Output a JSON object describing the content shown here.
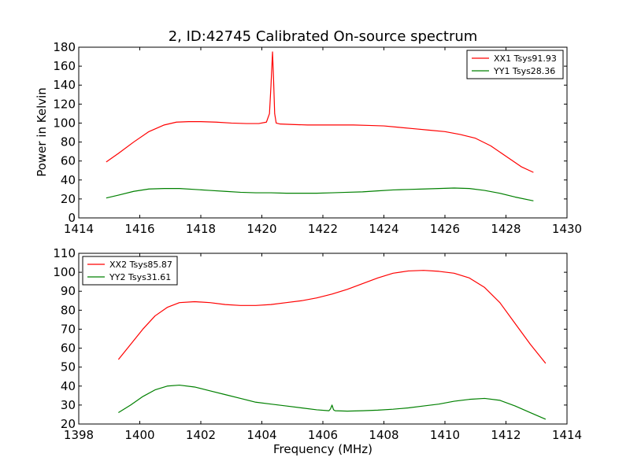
{
  "chart_data": [
    {
      "type": "line",
      "title": "2, ID:42745 Calibrated On-source spectrum",
      "xlabel": "",
      "ylabel": "Power in Kelvin",
      "xlim": [
        1414,
        1430
      ],
      "ylim": [
        0,
        180
      ],
      "xticks": [
        1414,
        1416,
        1418,
        1420,
        1422,
        1424,
        1426,
        1428,
        1430
      ],
      "yticks": [
        0,
        20,
        40,
        60,
        80,
        100,
        120,
        140,
        160,
        180
      ],
      "legend_position": "top-right",
      "series": [
        {
          "name": "XX1 Tsys91.93",
          "color": "#ff0000",
          "x": [
            1414.9,
            1415.3,
            1415.8,
            1416.3,
            1416.8,
            1417.2,
            1417.6,
            1418.0,
            1418.5,
            1419.0,
            1419.5,
            1419.9,
            1420.15,
            1420.25,
            1420.3,
            1420.35,
            1420.38,
            1420.42,
            1420.47,
            1420.6,
            1421.0,
            1421.5,
            1422.0,
            1422.5,
            1423.0,
            1423.5,
            1424.0,
            1424.5,
            1425.0,
            1425.5,
            1426.0,
            1426.5,
            1427.0,
            1427.5,
            1428.0,
            1428.5,
            1428.9
          ],
          "y": [
            59,
            68,
            80,
            91,
            98,
            101,
            101.5,
            101.5,
            101,
            100,
            99.5,
            99.5,
            101,
            110,
            140,
            175,
            150,
            110,
            100,
            99,
            98.5,
            98,
            98,
            98,
            98,
            97.5,
            97,
            95.5,
            94,
            92.5,
            91,
            88,
            84,
            76,
            65,
            54,
            48
          ]
        },
        {
          "name": "YY1 Tsys28.36",
          "color": "#008000",
          "x": [
            1414.9,
            1415.3,
            1415.8,
            1416.3,
            1416.8,
            1417.3,
            1417.8,
            1418.3,
            1418.8,
            1419.3,
            1419.8,
            1420.3,
            1420.8,
            1421.3,
            1421.8,
            1422.3,
            1422.8,
            1423.3,
            1423.8,
            1424.3,
            1424.8,
            1425.3,
            1425.8,
            1426.3,
            1426.8,
            1427.3,
            1427.8,
            1428.3,
            1428.9
          ],
          "y": [
            21,
            24,
            28,
            30.5,
            31,
            31,
            30,
            29,
            28,
            27,
            26.5,
            26.5,
            26,
            26,
            26,
            26.5,
            27,
            27.5,
            28.5,
            29.5,
            30,
            30.5,
            31,
            31.5,
            31,
            29,
            26,
            22,
            18
          ]
        }
      ]
    },
    {
      "type": "line",
      "title": "",
      "xlabel": "Frequency (MHz)",
      "ylabel": "",
      "xlim": [
        1398,
        1414
      ],
      "ylim": [
        20,
        110
      ],
      "xticks": [
        1398,
        1400,
        1402,
        1404,
        1406,
        1408,
        1410,
        1412,
        1414
      ],
      "yticks": [
        20,
        30,
        40,
        50,
        60,
        70,
        80,
        90,
        100,
        110
      ],
      "legend_position": "top-left",
      "series": [
        {
          "name": "XX2 Tsys85.87",
          "color": "#ff0000",
          "x": [
            1399.3,
            1399.7,
            1400.1,
            1400.5,
            1400.9,
            1401.3,
            1401.8,
            1402.3,
            1402.8,
            1403.3,
            1403.8,
            1404.3,
            1404.8,
            1405.3,
            1405.8,
            1406.3,
            1406.8,
            1407.3,
            1407.8,
            1408.3,
            1408.8,
            1409.3,
            1409.8,
            1410.3,
            1410.8,
            1411.3,
            1411.8,
            1412.3,
            1412.8,
            1413.3
          ],
          "y": [
            54,
            62,
            70,
            77,
            81.5,
            84,
            84.5,
            84,
            83,
            82.5,
            82.5,
            83,
            84,
            85,
            86.5,
            88.5,
            91,
            94,
            97,
            99.5,
            100.7,
            101,
            100.5,
            99.5,
            97,
            92,
            84,
            73,
            62,
            52
          ]
        },
        {
          "name": "YY2 Tsys31.61",
          "color": "#008000",
          "x": [
            1399.3,
            1399.7,
            1400.1,
            1400.5,
            1400.9,
            1401.3,
            1401.8,
            1402.3,
            1402.8,
            1403.3,
            1403.8,
            1404.3,
            1404.8,
            1405.3,
            1405.8,
            1406.2,
            1406.25,
            1406.3,
            1406.35,
            1406.4,
            1406.8,
            1407.3,
            1407.8,
            1408.3,
            1408.8,
            1409.3,
            1409.8,
            1410.3,
            1410.8,
            1411.3,
            1411.8,
            1412.3,
            1412.8,
            1413.3
          ],
          "y": [
            26,
            30,
            34.5,
            38,
            40,
            40.5,
            39.5,
            37.5,
            35.5,
            33.5,
            31.5,
            30.5,
            29.5,
            28.5,
            27.5,
            27,
            28,
            30,
            27.5,
            27,
            26.8,
            27,
            27.3,
            27.8,
            28.5,
            29.5,
            30.5,
            32,
            33,
            33.5,
            32.5,
            29.5,
            26,
            22.5
          ]
        }
      ]
    }
  ]
}
